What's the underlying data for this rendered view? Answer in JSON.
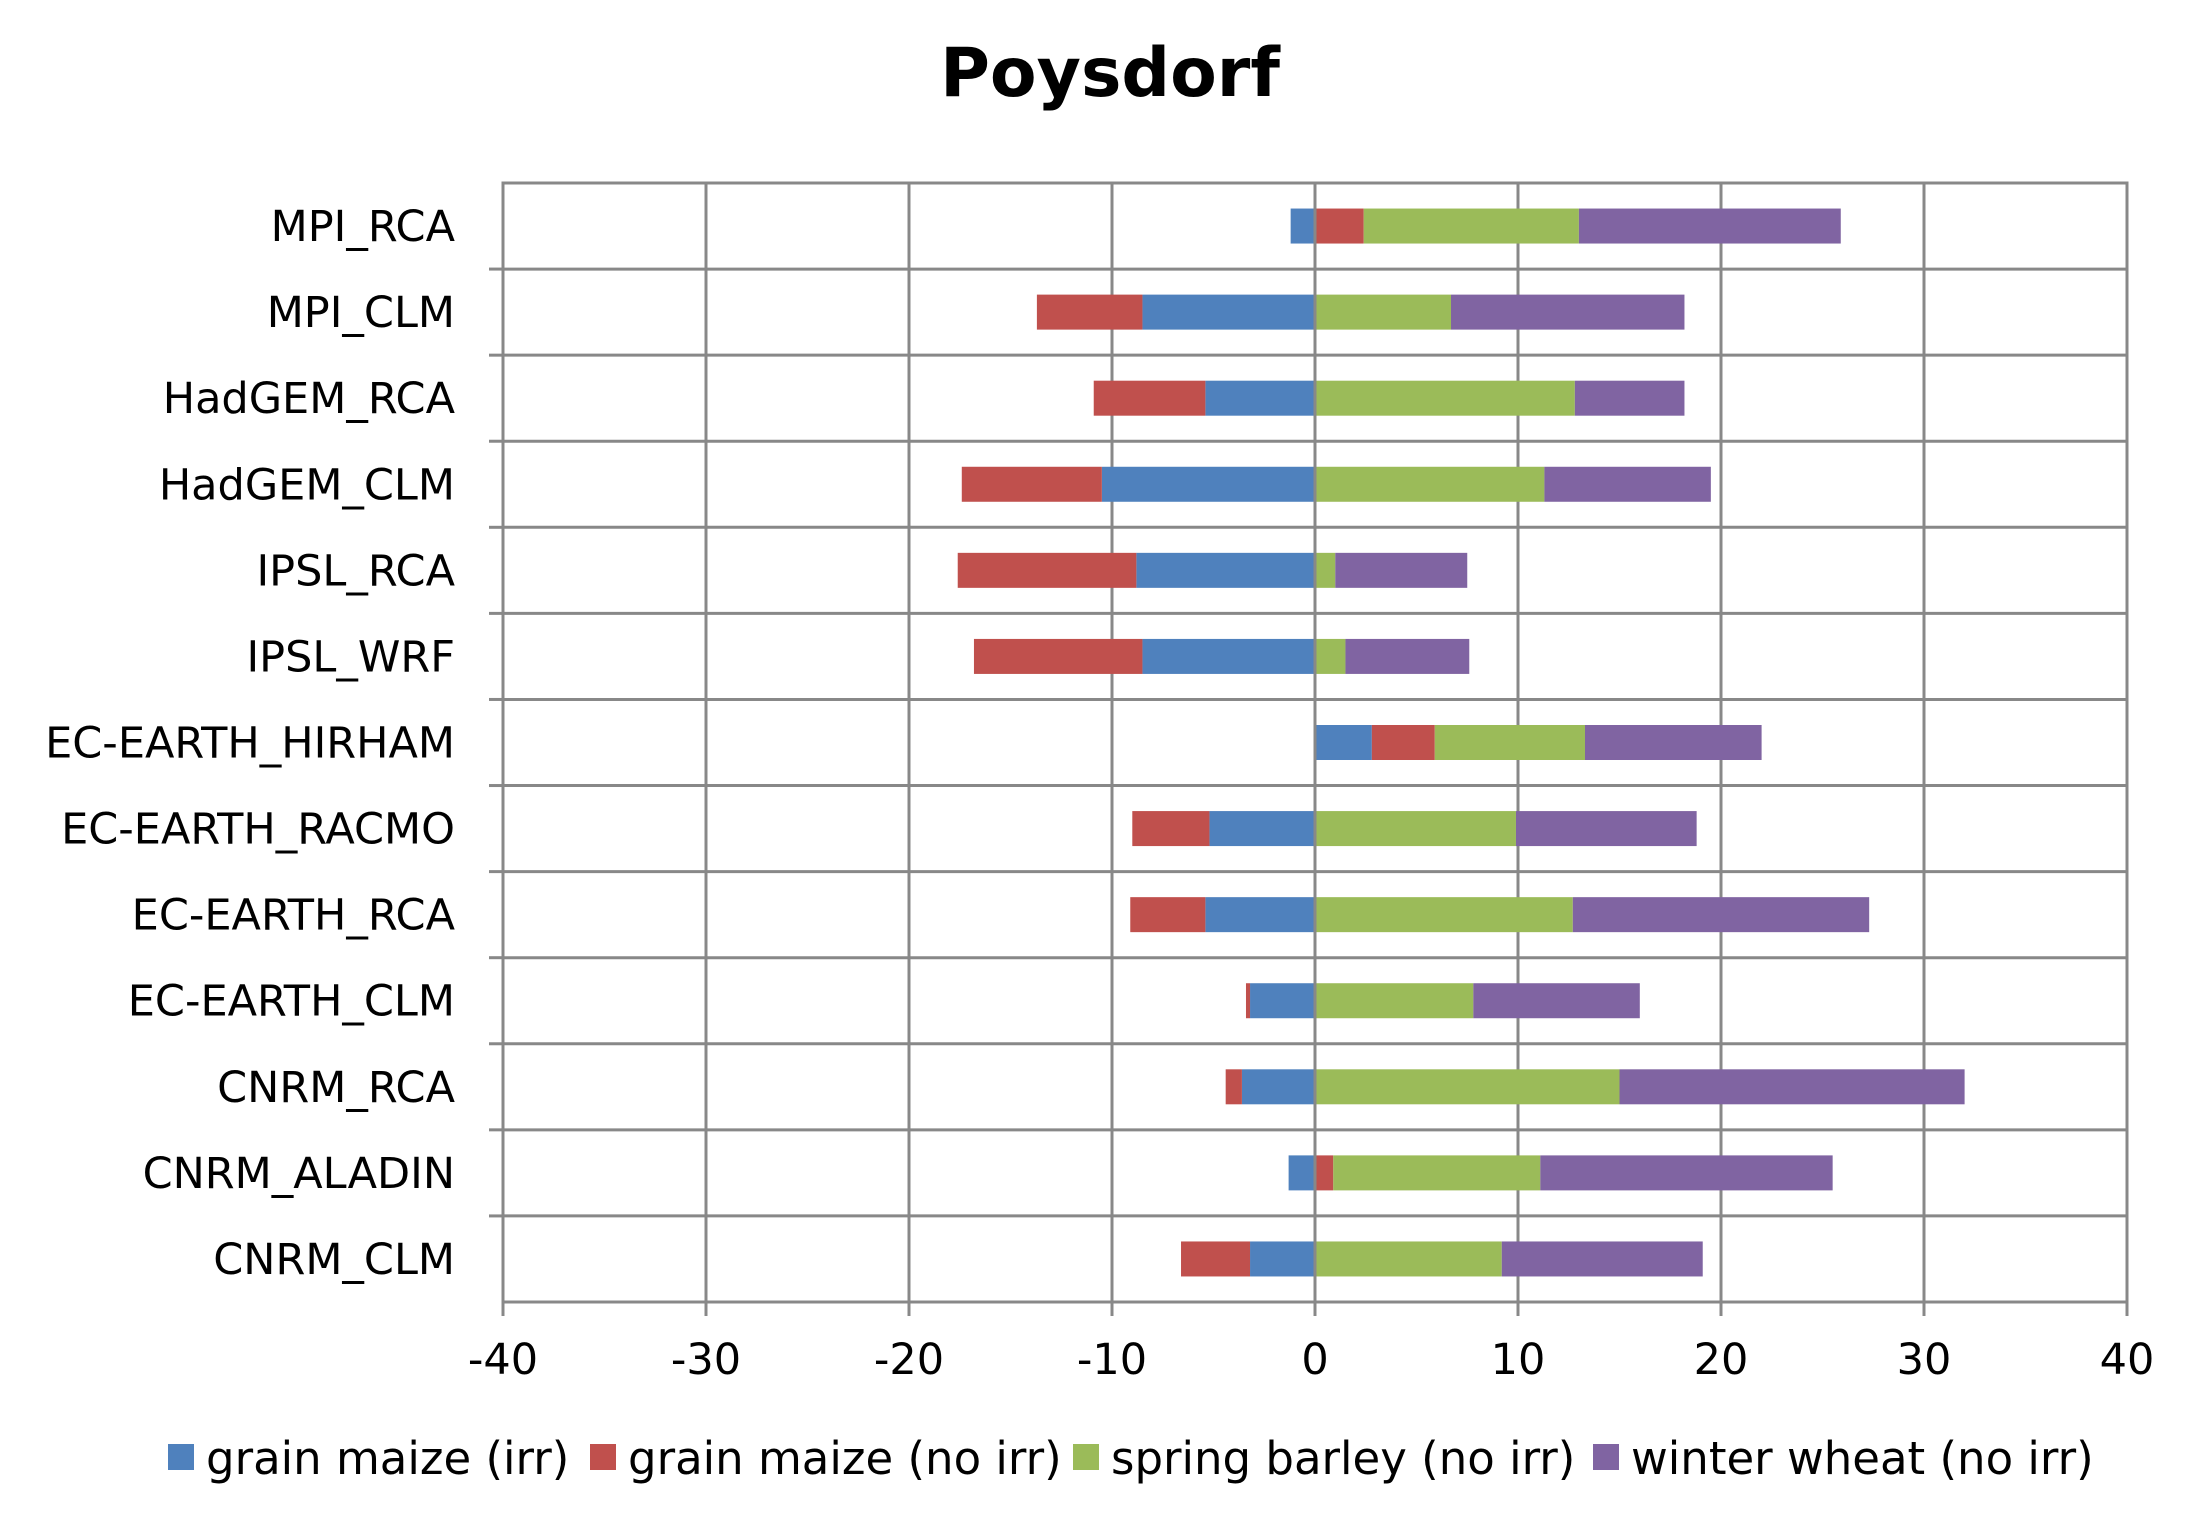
{
  "chart_data": {
    "type": "bar",
    "orientation": "horizontal",
    "stacked": true,
    "title": "Poysdorf",
    "xlabel": "",
    "ylabel": "",
    "xlim": [
      -40,
      40
    ],
    "x_ticks": [
      "-40",
      "-30",
      "-20",
      "-10",
      "0",
      "10",
      "20",
      "30",
      "40"
    ],
    "grid": true,
    "legend_position": "bottom",
    "categories": [
      "MPI_RCA",
      "MPI_CLM",
      "HadGEM_RCA",
      "HadGEM_CLM",
      "IPSL_RCA",
      "IPSL_WRF",
      "EC-EARTH_HIRHAM",
      "EC-EARTH_RACMO",
      "EC-EARTH_RCA",
      "EC-EARTH_CLM",
      "CNRM_RCA",
      "CNRM_ALADIN",
      "CNRM_CLM"
    ],
    "series": [
      {
        "name": "grain maize (irr)",
        "color": "#4f81bd",
        "values": [
          -1.2,
          -8.5,
          -5.4,
          -10.5,
          -8.8,
          -8.5,
          2.8,
          -5.2,
          -5.4,
          -3.2,
          -3.6,
          -1.3,
          -3.2
        ]
      },
      {
        "name": "grain maize (no irr)",
        "color": "#c0504d",
        "values": [
          2.4,
          -5.2,
          -5.5,
          -6.9,
          -8.8,
          -8.3,
          3.1,
          -3.8,
          -3.7,
          -0.2,
          -0.8,
          0.9,
          -3.4
        ]
      },
      {
        "name": "spring barley (no irr)",
        "color": "#9bbb59",
        "values": [
          10.6,
          6.7,
          12.8,
          11.3,
          1.0,
          1.5,
          7.4,
          9.9,
          12.7,
          7.8,
          15.0,
          10.2,
          9.2
        ]
      },
      {
        "name": "winter wheat (no irr)",
        "color": "#8064a2",
        "values": [
          12.9,
          11.5,
          5.4,
          8.2,
          6.5,
          6.1,
          8.7,
          8.9,
          14.6,
          8.2,
          17.0,
          14.4,
          9.9
        ]
      }
    ]
  }
}
